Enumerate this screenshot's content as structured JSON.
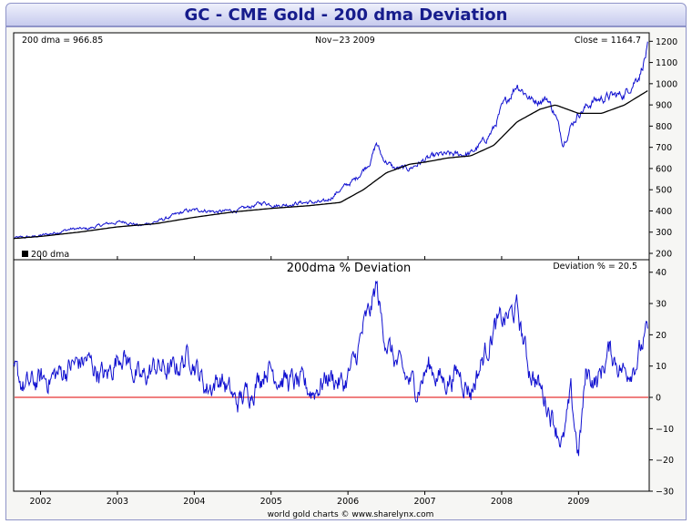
{
  "page": {
    "title": "GC - CME Gold - 200 dma Deviation"
  },
  "upper": {
    "dma_label": "200 dma =",
    "dma_value": "966.85",
    "date": "Nov−23  2009",
    "close_label": "Close = 1164.7",
    "legend": "200 dma",
    "y_ticks": [
      "200",
      "300",
      "400",
      "500",
      "600",
      "700",
      "800",
      "900",
      "1000",
      "1100",
      "1200"
    ]
  },
  "lower": {
    "title": "200dma  %  Deviation",
    "deviation_label": "Deviation % = 20.5",
    "y_ticks": [
      "−30",
      "−20",
      "−10",
      "0",
      "10",
      "20",
      "30",
      "40"
    ]
  },
  "x_axis": {
    "years": [
      "2002",
      "2003",
      "2004",
      "2005",
      "2006",
      "2007",
      "2008",
      "2009"
    ]
  },
  "footer": {
    "credit": "world gold charts © www.sharelynx.com"
  },
  "colors": {
    "price": "#1010d0",
    "dma": "#000000",
    "zero_line": "#e00000",
    "title": "#161c8c"
  },
  "chart_data": [
    {
      "type": "line",
      "title": "GC - CME Gold - 200 dma Deviation",
      "ylim": [
        170,
        1240
      ],
      "y_ticks": [
        200,
        300,
        400,
        500,
        600,
        700,
        800,
        900,
        1000,
        1100,
        1200
      ],
      "x_ticks": [
        "2002",
        "2003",
        "2004",
        "2005",
        "2006",
        "2007",
        "2008",
        "2009"
      ],
      "series": [
        {
          "name": "Close",
          "x": [
            2001.65,
            2001.9,
            2002.1,
            2002.4,
            2002.6,
            2002.9,
            2003.1,
            2003.3,
            2003.6,
            2003.9,
            2004.1,
            2004.3,
            2004.6,
            2004.9,
            2005.1,
            2005.4,
            2005.7,
            2005.9,
            2006.1,
            2006.3,
            2006.37,
            2006.45,
            2006.6,
            2006.8,
            2007.0,
            2007.2,
            2007.4,
            2007.6,
            2007.8,
            2007.9,
            2008.0,
            2008.2,
            2008.4,
            2008.6,
            2008.7,
            2008.8,
            2008.9,
            2009.0,
            2009.2,
            2009.4,
            2009.6,
            2009.8,
            2009.9
          ],
          "y": [
            272,
            278,
            290,
            315,
            315,
            342,
            350,
            330,
            360,
            400,
            405,
            395,
            405,
            440,
            425,
            440,
            440,
            500,
            550,
            640,
            720,
            650,
            600,
            600,
            640,
            665,
            665,
            670,
            740,
            790,
            880,
            1000,
            920,
            930,
            850,
            720,
            800,
            860,
            920,
            940,
            950,
            1050,
            1165
          ]
        },
        {
          "name": "200 dma",
          "x": [
            2001.65,
            2002.0,
            2002.5,
            2003.0,
            2003.5,
            2004.0,
            2004.5,
            2005.0,
            2005.5,
            2005.9,
            2006.2,
            2006.5,
            2006.8,
            2007.0,
            2007.3,
            2007.6,
            2007.9,
            2008.2,
            2008.5,
            2008.7,
            2009.0,
            2009.3,
            2009.6,
            2009.9
          ],
          "y": [
            270,
            280,
            300,
            325,
            340,
            370,
            395,
            412,
            425,
            440,
            500,
            580,
            620,
            630,
            650,
            660,
            710,
            820,
            880,
            900,
            860,
            860,
            900,
            966.85
          ]
        }
      ]
    },
    {
      "type": "line",
      "title": "200dma  %  Deviation",
      "ylim": [
        -30,
        44
      ],
      "y_ticks": [
        -30,
        -20,
        -10,
        0,
        10,
        20,
        30,
        40
      ],
      "x_ticks": [
        "2002",
        "2003",
        "2004",
        "2005",
        "2006",
        "2007",
        "2008",
        "2009"
      ],
      "series": [
        {
          "name": "Deviation %",
          "x": [
            2001.65,
            2001.8,
            2001.95,
            2002.2,
            2002.4,
            2002.6,
            2002.85,
            2003.05,
            2003.3,
            2003.5,
            2003.7,
            2003.95,
            2004.15,
            2004.35,
            2004.55,
            2004.75,
            2004.95,
            2005.15,
            2005.35,
            2005.55,
            2005.75,
            2005.95,
            2006.1,
            2006.2,
            2006.3,
            2006.37,
            2006.45,
            2006.6,
            2006.75,
            2006.9,
            2007.05,
            2007.25,
            2007.45,
            2007.6,
            2007.75,
            2007.9,
            2008.05,
            2008.2,
            2008.35,
            2008.5,
            2008.65,
            2008.8,
            2008.9,
            2009.0,
            2009.1,
            2009.25,
            2009.4,
            2009.6,
            2009.75,
            2009.9
          ],
          "y": [
            8,
            3,
            5,
            7,
            10,
            12,
            6,
            15,
            5,
            10,
            8,
            14,
            3,
            6,
            -2,
            3,
            10,
            6,
            4,
            2,
            7,
            4,
            12,
            22,
            28,
            36,
            22,
            12,
            6,
            3,
            10,
            5,
            8,
            2,
            12,
            22,
            25,
            28,
            10,
            3,
            -5,
            -15,
            0,
            -18,
            8,
            5,
            15,
            8,
            12,
            20.5
          ]
        }
      ]
    }
  ]
}
